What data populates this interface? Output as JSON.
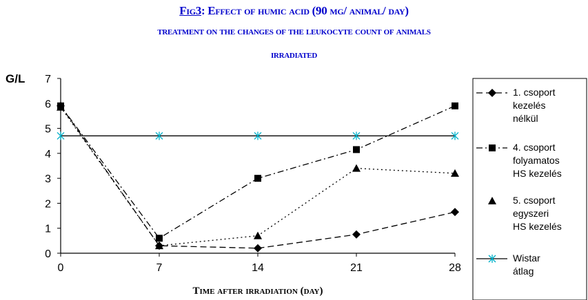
{
  "title": {
    "fig_label": "Fig3",
    "line1_rest": ": Effect of humic acid (90 mg/ animal/ day)",
    "line2": "treatment on the changes of the leukocyte count of animals",
    "line3": "irradiated"
  },
  "chart_data": {
    "type": "line",
    "ylabel": "G/L",
    "xlabel": "Time after irradiation (day)",
    "x": [
      0,
      7,
      14,
      21,
      28
    ],
    "xlim": [
      0,
      28
    ],
    "ylim": [
      0,
      7
    ],
    "yticks": [
      0,
      1,
      2,
      3,
      4,
      5,
      6,
      7
    ],
    "grid": false,
    "legend_position": "right",
    "series": [
      {
        "name_lines": [
          "1. csoport",
          "kezelés",
          "nélkül"
        ],
        "marker": "diamond",
        "dash": "dash",
        "color": "#000000",
        "values": [
          5.9,
          0.3,
          0.2,
          0.75,
          1.65
        ]
      },
      {
        "name_lines": [
          "4. csoport",
          "folyamatos",
          "HS kezelés"
        ],
        "marker": "square",
        "dash": "dashdot",
        "color": "#000000",
        "values": [
          5.9,
          0.6,
          3.0,
          4.15,
          5.9
        ]
      },
      {
        "name_lines": [
          "5. csoport",
          "egyszeri",
          "HS kezelés"
        ],
        "marker": "triangle",
        "dash": "dot",
        "color": "#000000",
        "values": [
          5.85,
          0.3,
          0.7,
          3.4,
          3.2
        ]
      },
      {
        "name_lines": [
          "Wistar",
          "átlag"
        ],
        "marker": "star",
        "dash": "solid",
        "color": "#00b0c8",
        "line_color": "#000000",
        "values": [
          4.7,
          4.7,
          4.7,
          4.7,
          4.7
        ]
      }
    ]
  }
}
